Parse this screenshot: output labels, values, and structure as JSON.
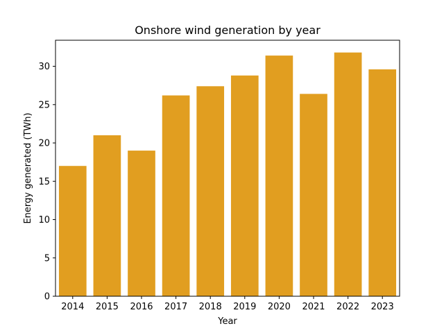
{
  "chart_data": {
    "type": "bar",
    "title": "Onshore wind generation by year",
    "xlabel": "Year",
    "ylabel": "Energy generated (TWh)",
    "categories": [
      "2014",
      "2015",
      "2016",
      "2017",
      "2018",
      "2019",
      "2020",
      "2021",
      "2022",
      "2023"
    ],
    "values": [
      17.0,
      21.0,
      19.0,
      26.2,
      27.4,
      28.8,
      31.4,
      26.4,
      31.8,
      29.6
    ],
    "ylim": [
      0,
      33.4
    ],
    "yticks": [
      0,
      5,
      10,
      15,
      20,
      25,
      30
    ],
    "grid": false,
    "bar_color": "#e19e20"
  }
}
